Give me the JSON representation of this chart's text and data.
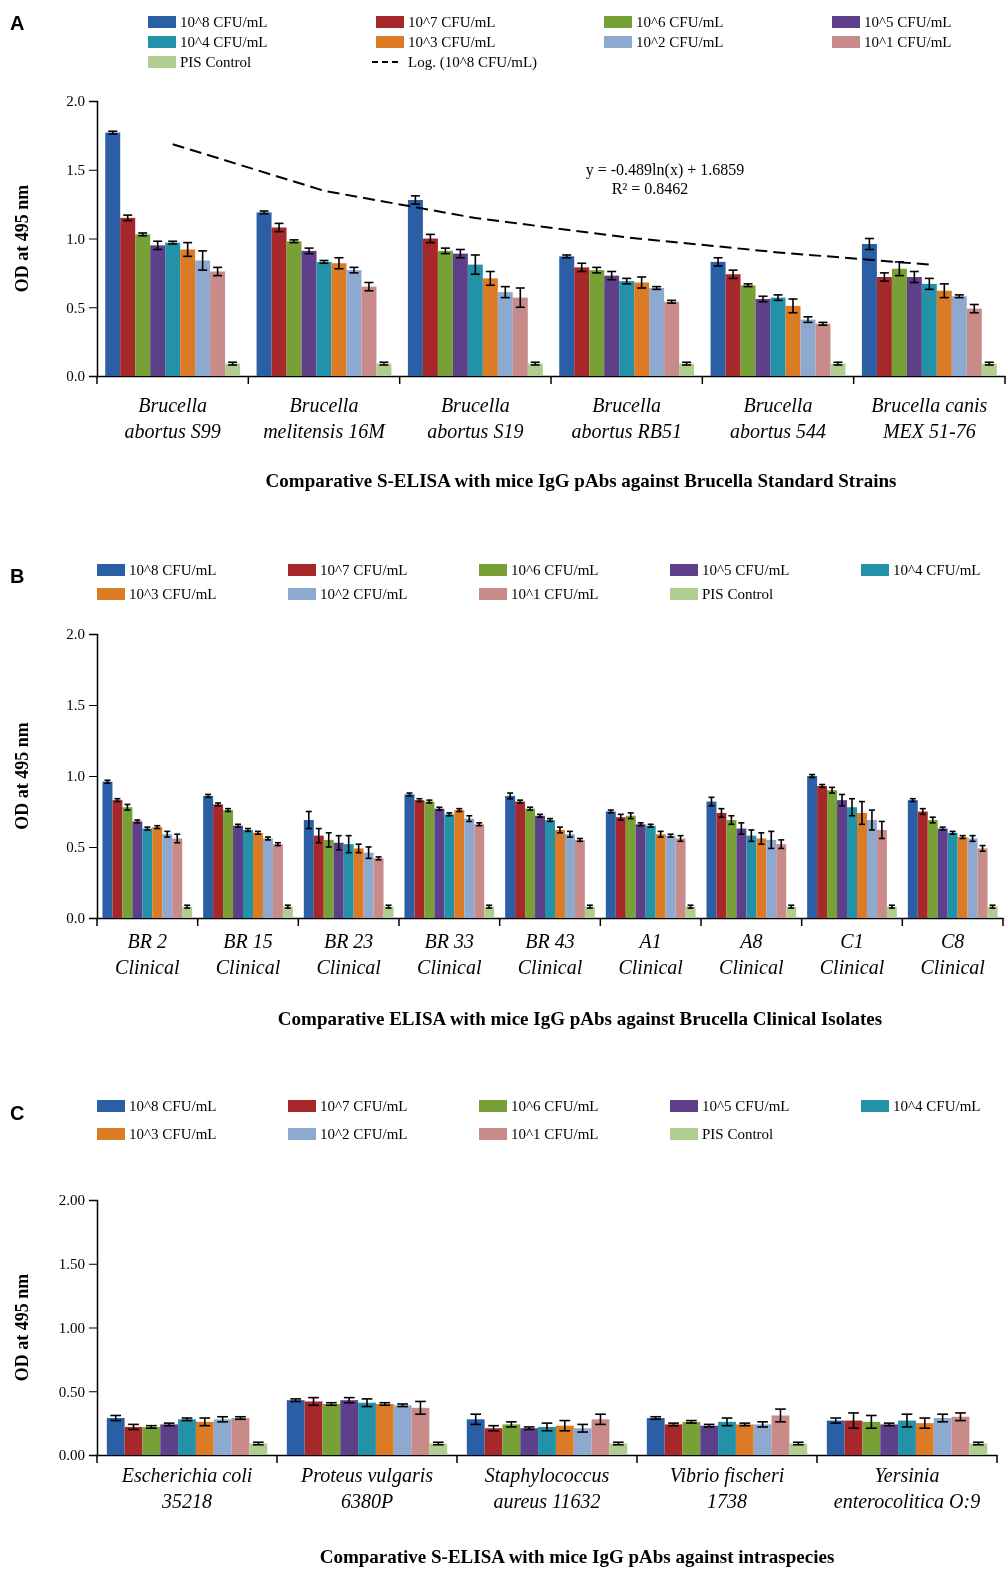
{
  "chart_data": [
    {
      "type": "bar",
      "title": "A",
      "xlabel": "Comparative S-ELISA  with mice IgG pAbs against Brucella  Standard Strains",
      "ylabel": "OD at 495 nm",
      "categories": [
        "Brucella\nabortus S99",
        "Brucella\nmelitensis 16M",
        "Brucella\nabortus S19",
        "Brucella\nabortus RB51",
        "Brucella\nabortus 544",
        "Brucella canis\nMEX 51-76"
      ],
      "ylim": [
        0,
        2
      ],
      "yticks": [
        {
          "value": 0,
          "label": "0.0"
        },
        {
          "value": 0.5,
          "label": "0.5"
        },
        {
          "value": 1,
          "label": "1.0"
        },
        {
          "value": 1.5,
          "label": "1.5"
        },
        {
          "value": 2,
          "label": "2.0"
        }
      ],
      "legend": "top",
      "annotations": [
        "y = -0.489ln(x) + 1.6859",
        "R² = 0.8462"
      ],
      "series": [
        {
          "name": "10^8 CFU/mL",
          "color": "#2a5fa5",
          "values": [
            1.77,
            1.19,
            1.28,
            0.87,
            0.83,
            0.96
          ],
          "errors": [
            0.01,
            0.01,
            0.03,
            0.01,
            0.03,
            0.04
          ]
        },
        {
          "name": "10^7 CFU/mL",
          "color": "#a6282a",
          "values": [
            1.15,
            1.08,
            1.0,
            0.79,
            0.74,
            0.72
          ],
          "errors": [
            0.02,
            0.03,
            0.03,
            0.03,
            0.03,
            0.03
          ]
        },
        {
          "name": "10^6 CFU/mL",
          "color": "#77a136",
          "values": [
            1.03,
            0.98,
            0.91,
            0.77,
            0.66,
            0.78
          ],
          "errors": [
            0.01,
            0.01,
            0.02,
            0.02,
            0.01,
            0.05
          ]
        },
        {
          "name": "10^5 CFU/mL",
          "color": "#5d3f8a",
          "values": [
            0.95,
            0.91,
            0.89,
            0.73,
            0.56,
            0.72
          ],
          "errors": [
            0.03,
            0.02,
            0.03,
            0.03,
            0.02,
            0.04
          ]
        },
        {
          "name": "10^4 CFU/mL",
          "color": "#2391a8",
          "values": [
            0.97,
            0.83,
            0.81,
            0.69,
            0.57,
            0.67
          ],
          "errors": [
            0.01,
            0.01,
            0.07,
            0.02,
            0.02,
            0.04
          ]
        },
        {
          "name": "10^3 CFU/mL",
          "color": "#db7b25",
          "values": [
            0.92,
            0.82,
            0.71,
            0.68,
            0.51,
            0.62
          ],
          "errors": [
            0.05,
            0.04,
            0.05,
            0.04,
            0.05,
            0.05
          ]
        },
        {
          "name": "10^2 CFU/mL",
          "color": "#8ea9cf",
          "values": [
            0.84,
            0.77,
            0.61,
            0.64,
            0.41,
            0.58
          ],
          "errors": [
            0.07,
            0.02,
            0.04,
            0.01,
            0.02,
            0.01
          ]
        },
        {
          "name": "10^1 CFU/mL",
          "color": "#c98a8a",
          "values": [
            0.76,
            0.65,
            0.57,
            0.54,
            0.38,
            0.49
          ],
          "errors": [
            0.03,
            0.03,
            0.07,
            0.01,
            0.01,
            0.03
          ]
        },
        {
          "name": "PIS Control",
          "color": "#b0cc8e",
          "values": [
            0.09,
            0.09,
            0.09,
            0.09,
            0.09,
            0.09
          ],
          "errors": [
            0.01,
            0.01,
            0.01,
            0.01,
            0.01,
            0.01
          ]
        },
        {
          "name": "Log. (10^8 CFU/mL)",
          "type": "line",
          "line_style": "dashed",
          "color": "#000000",
          "values": [
            1.686,
            1.347,
            1.149,
            1.008,
            0.899,
            0.81
          ]
        }
      ]
    },
    {
      "type": "bar",
      "title": "B",
      "xlabel": "Comparative ELISA with  mice IgG pAbs against Brucella Clinical Isolates",
      "ylabel": "OD at 495 nm",
      "categories": [
        "BR 2\nClinical",
        "BR 15\nClinical",
        "BR 23\nClinical",
        "BR 33\nClinical",
        "BR 43\nClinical",
        "A1\nClinical",
        "A8\nClinical",
        "C1\nClinical",
        "C8\nClinical"
      ],
      "ylim": [
        0,
        2
      ],
      "yticks": [
        {
          "value": 0,
          "label": "0.0"
        },
        {
          "value": 0.5,
          "label": "0.5"
        },
        {
          "value": 1,
          "label": "1.0"
        },
        {
          "value": 1.5,
          "label": "1.5"
        },
        {
          "value": 2,
          "label": "2.0"
        }
      ],
      "legend": "top",
      "series": [
        {
          "name": "10^8 CFU/mL",
          "color": "#2a5fa5",
          "values": [
            0.96,
            0.86,
            0.69,
            0.87,
            0.86,
            0.75,
            0.82,
            1.0,
            0.83
          ],
          "errors": [
            0.01,
            0.01,
            0.06,
            0.01,
            0.02,
            0.01,
            0.03,
            0.01,
            0.01
          ]
        },
        {
          "name": "10^7 CFU/mL",
          "color": "#a6282a",
          "values": [
            0.83,
            0.8,
            0.58,
            0.83,
            0.82,
            0.71,
            0.74,
            0.93,
            0.75
          ],
          "errors": [
            0.01,
            0.01,
            0.05,
            0.01,
            0.01,
            0.02,
            0.03,
            0.01,
            0.02
          ]
        },
        {
          "name": "10^6 CFU/mL",
          "color": "#77a136",
          "values": [
            0.78,
            0.76,
            0.55,
            0.82,
            0.77,
            0.72,
            0.69,
            0.9,
            0.69
          ],
          "errors": [
            0.02,
            0.01,
            0.05,
            0.01,
            0.01,
            0.02,
            0.03,
            0.02,
            0.02
          ]
        },
        {
          "name": "10^5 CFU/mL",
          "color": "#5d3f8a",
          "values": [
            0.68,
            0.65,
            0.53,
            0.77,
            0.72,
            0.66,
            0.63,
            0.83,
            0.63
          ],
          "errors": [
            0.01,
            0.01,
            0.05,
            0.01,
            0.01,
            0.01,
            0.04,
            0.04,
            0.01
          ]
        },
        {
          "name": "10^4 CFU/mL",
          "color": "#2391a8",
          "values": [
            0.63,
            0.62,
            0.52,
            0.73,
            0.69,
            0.65,
            0.58,
            0.78,
            0.6
          ],
          "errors": [
            0.01,
            0.01,
            0.06,
            0.01,
            0.01,
            0.01,
            0.04,
            0.06,
            0.01
          ]
        },
        {
          "name": "10^3 CFU/mL",
          "color": "#db7b25",
          "values": [
            0.64,
            0.6,
            0.49,
            0.76,
            0.62,
            0.59,
            0.56,
            0.74,
            0.57
          ],
          "errors": [
            0.01,
            0.01,
            0.03,
            0.01,
            0.02,
            0.02,
            0.04,
            0.08,
            0.01
          ]
        },
        {
          "name": "10^2 CFU/mL",
          "color": "#8ea9cf",
          "values": [
            0.59,
            0.56,
            0.46,
            0.7,
            0.59,
            0.58,
            0.55,
            0.69,
            0.56
          ],
          "errors": [
            0.02,
            0.01,
            0.04,
            0.02,
            0.02,
            0.01,
            0.06,
            0.07,
            0.02
          ]
        },
        {
          "name": "10^1 CFU/mL",
          "color": "#c98a8a",
          "values": [
            0.56,
            0.52,
            0.42,
            0.66,
            0.55,
            0.56,
            0.52,
            0.62,
            0.49
          ],
          "errors": [
            0.03,
            0.01,
            0.01,
            0.01,
            0.01,
            0.02,
            0.03,
            0.06,
            0.02
          ]
        },
        {
          "name": "PIS Control",
          "color": "#b0cc8e",
          "values": [
            0.08,
            0.08,
            0.08,
            0.08,
            0.08,
            0.08,
            0.08,
            0.08,
            0.08
          ],
          "errors": [
            0.01,
            0.01,
            0.01,
            0.01,
            0.01,
            0.01,
            0.01,
            0.01,
            0.01
          ]
        }
      ]
    },
    {
      "type": "bar",
      "title": "C",
      "xlabel": "Comparative S-ELISA with mice IgG pAbs against intraspecies",
      "ylabel": "OD at 495 nm",
      "categories": [
        "Escherichia coli\n35218",
        "Proteus vulgaris\n6380P",
        "Staphylococcus\naureus 11632",
        "Vibrio fischeri\n1738",
        "Yersinia\nenterocolitica O:9"
      ],
      "ylim": [
        0,
        2
      ],
      "yticks": [
        {
          "value": 0,
          "label": "0.00"
        },
        {
          "value": 0.5,
          "label": "0.50"
        },
        {
          "value": 1,
          "label": "1.00"
        },
        {
          "value": 1.5,
          "label": "1.50"
        },
        {
          "value": 2,
          "label": "2.00"
        }
      ],
      "legend": "top",
      "series": [
        {
          "name": "10^8 CFU/mL",
          "color": "#2a5fa5",
          "values": [
            0.29,
            0.43,
            0.28,
            0.29,
            0.27
          ],
          "errors": [
            0.02,
            0.01,
            0.04,
            0.01,
            0.02
          ]
        },
        {
          "name": "10^7 CFU/mL",
          "color": "#a6282a",
          "values": [
            0.22,
            0.42,
            0.21,
            0.24,
            0.27
          ],
          "errors": [
            0.02,
            0.03,
            0.02,
            0.01,
            0.06
          ]
        },
        {
          "name": "10^6 CFU/mL",
          "color": "#77a136",
          "values": [
            0.22,
            0.4,
            0.24,
            0.26,
            0.26
          ],
          "errors": [
            0.01,
            0.01,
            0.02,
            0.01,
            0.05
          ]
        },
        {
          "name": "10^5 CFU/mL",
          "color": "#5d3f8a",
          "values": [
            0.24,
            0.43,
            0.21,
            0.23,
            0.24
          ],
          "errors": [
            0.01,
            0.02,
            0.01,
            0.01,
            0.01
          ]
        },
        {
          "name": "10^4 CFU/mL",
          "color": "#2391a8",
          "values": [
            0.28,
            0.41,
            0.22,
            0.26,
            0.27
          ],
          "errors": [
            0.01,
            0.03,
            0.03,
            0.03,
            0.05
          ]
        },
        {
          "name": "10^3 CFU/mL",
          "color": "#db7b25",
          "values": [
            0.26,
            0.4,
            0.23,
            0.24,
            0.25
          ],
          "errors": [
            0.03,
            0.01,
            0.04,
            0.01,
            0.04
          ]
        },
        {
          "name": "10^2 CFU/mL",
          "color": "#8ea9cf",
          "values": [
            0.28,
            0.39,
            0.21,
            0.24,
            0.29
          ],
          "errors": [
            0.02,
            0.01,
            0.03,
            0.02,
            0.03
          ]
        },
        {
          "name": "10^1 CFU/mL",
          "color": "#c98a8a",
          "values": [
            0.29,
            0.37,
            0.28,
            0.31,
            0.3
          ],
          "errors": [
            0.01,
            0.05,
            0.04,
            0.05,
            0.03
          ]
        },
        {
          "name": "PIS Control",
          "color": "#b0cc8e",
          "values": [
            0.09,
            0.09,
            0.09,
            0.09,
            0.09
          ],
          "errors": [
            0.01,
            0.01,
            0.01,
            0.01,
            0.01
          ]
        }
      ]
    }
  ]
}
